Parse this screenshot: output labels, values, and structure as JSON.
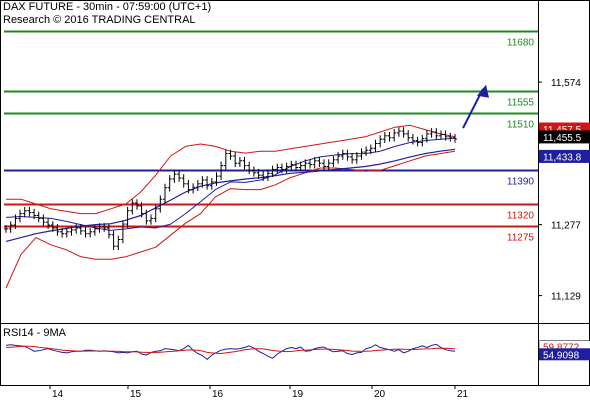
{
  "header": {
    "line1": "DAX FUTURE - 30min - 07:59:00 (UTC+1)",
    "line2": "Research © 2016 TRADING CENTRAL"
  },
  "rsi_label": "RSI14 - 9MA",
  "chart_data": [
    {
      "type": "candlestick",
      "title": "DAX FUTURE - 30min - 07:59:00 (UTC+1)",
      "x_ticks": [
        "14",
        "15",
        "16",
        "19",
        "20",
        "21"
      ],
      "y_ticks": [
        11680,
        11574,
        11510,
        11277,
        11129
      ],
      "y_tick_labels": [
        "11,574",
        "11,277",
        "11,129"
      ],
      "ylim": [
        11072,
        11745
      ],
      "levels": [
        {
          "value": 11680,
          "label": "11680",
          "color": "#1f8a1f"
        },
        {
          "value": 11555,
          "label": "11555",
          "color": "#1f8a1f"
        },
        {
          "value": 11510,
          "label": "11510",
          "color": "#1f8a1f"
        },
        {
          "value": 11390,
          "label": "11390",
          "color": "#1f1f9e"
        },
        {
          "value": 11320,
          "label": "11320",
          "color": "#d11414"
        },
        {
          "value": 11275,
          "label": "11275",
          "color": "#d11414"
        }
      ],
      "price_tags": [
        {
          "value": 11457.5,
          "label": "11,457.5",
          "bg": "#d11414",
          "fg": "#ffffff"
        },
        {
          "value": 11455.5,
          "label": "11,455.5",
          "bg": "#000000",
          "fg": "#ffffff"
        },
        {
          "value": 11433.8,
          "label": "11,433.8",
          "bg": "#1f1f9e",
          "fg": "#ffffff"
        }
      ],
      "close": [
        11268,
        11276,
        11290,
        11300,
        11306,
        11302,
        11296,
        11290,
        11282,
        11276,
        11270,
        11262,
        11258,
        11262,
        11266,
        11270,
        11264,
        11258,
        11262,
        11268,
        11272,
        11270,
        11256,
        11232,
        11246,
        11278,
        11306,
        11322,
        11316,
        11300,
        11285,
        11290,
        11310,
        11330,
        11354,
        11372,
        11382,
        11374,
        11362,
        11350,
        11355,
        11362,
        11370,
        11358,
        11366,
        11378,
        11400,
        11425,
        11420,
        11405,
        11410,
        11400,
        11390,
        11385,
        11380,
        11376,
        11384,
        11392,
        11396,
        11392,
        11398,
        11402,
        11396,
        11400,
        11405,
        11402,
        11410,
        11405,
        11398,
        11405,
        11412,
        11420,
        11425,
        11418,
        11412,
        11420,
        11428,
        11432,
        11436,
        11446,
        11455,
        11462,
        11458,
        11468,
        11472,
        11466,
        11458,
        11452,
        11448,
        11456,
        11466,
        11470,
        11462,
        11465,
        11460,
        11458,
        11455.5
      ],
      "ma_fast": [
        11292,
        11294,
        11292,
        11290,
        11284,
        11277,
        11270,
        11265,
        11268,
        11272,
        11270,
        11278,
        11300,
        11325,
        11350,
        11366,
        11365,
        11370,
        11381,
        11398,
        11410,
        11418,
        11422,
        11425,
        11425,
        11430,
        11440,
        11448,
        11452,
        11455,
        11457
      ],
      "ma_slow": [
        11242,
        11250,
        11258,
        11264,
        11269,
        11274,
        11277,
        11279,
        11286,
        11296,
        11312,
        11328,
        11345,
        11357,
        11364,
        11368,
        11372,
        11375,
        11379,
        11384,
        11386,
        11389,
        11392,
        11395,
        11398,
        11403,
        11410,
        11418,
        11425,
        11430,
        11434
      ],
      "band_upper": [
        11330,
        11330,
        11320,
        11310,
        11305,
        11300,
        11300,
        11310,
        11320,
        11345,
        11380,
        11420,
        11440,
        11445,
        11440,
        11430,
        11426,
        11430,
        11430,
        11435,
        11440,
        11445,
        11450,
        11455,
        11460,
        11470,
        11480,
        11484,
        11475,
        11466,
        11460
      ],
      "band_lower": [
        11145,
        11215,
        11250,
        11235,
        11225,
        11210,
        11205,
        11205,
        11210,
        11220,
        11230,
        11255,
        11280,
        11300,
        11335,
        11352,
        11350,
        11350,
        11360,
        11375,
        11385,
        11395,
        11395,
        11392,
        11388,
        11390,
        11400,
        11410,
        11420,
        11425,
        11430
      ]
    },
    {
      "type": "line",
      "title": "RSI14 - 9MA",
      "ylim": [
        0,
        100
      ],
      "series": [
        {
          "name": "RSI14",
          "color": "#1f1f9e",
          "values": [
            66,
            67,
            66,
            65,
            64,
            60,
            55,
            56,
            58,
            60,
            57,
            55,
            53,
            52,
            54,
            55,
            55,
            57,
            57,
            56,
            55,
            56,
            55,
            54,
            52,
            53,
            52,
            54,
            55,
            50,
            48,
            53,
            55,
            56,
            60,
            59,
            58,
            56,
            60,
            66,
            57,
            51,
            47,
            40,
            48,
            53,
            57,
            59,
            60,
            59,
            60,
            62,
            65,
            61,
            55,
            51,
            46,
            42,
            50,
            55,
            60,
            62,
            60,
            63,
            55,
            56,
            60,
            62,
            63,
            58,
            54,
            55,
            56,
            51,
            49,
            52,
            53,
            60,
            62,
            67,
            62,
            60,
            58,
            55,
            58,
            52,
            55,
            60,
            62,
            65,
            62,
            66,
            68,
            62,
            58,
            56,
            55
          ]
        },
        {
          "name": "9MA",
          "color": "#d11414",
          "values": [
            62,
            62.6,
            63.2,
            63.8,
            64.2,
            64.5,
            63.8,
            62.5,
            61.5,
            60.5,
            59.5,
            58.5,
            57.2,
            56.5,
            56,
            55.5,
            55.4,
            55.4,
            55.5,
            55.6,
            55.4,
            55.4,
            55.2,
            55,
            54.8,
            54.5,
            54.2,
            54,
            53.8,
            53.4,
            53,
            52.8,
            52.9,
            53.1,
            53.8,
            54.6,
            55.2,
            56,
            56.6,
            57.6,
            57.4,
            57,
            55.5,
            53,
            52,
            51.5,
            51,
            52,
            53.4,
            54.5,
            56,
            57.7,
            58.9,
            59.8,
            59.9,
            59.4,
            58.2,
            56.5,
            55.6,
            54.8,
            54.5,
            54.8,
            55.8,
            56.8,
            57.1,
            57.5,
            58.3,
            58.8,
            59.1,
            59.1,
            58.5,
            57.7,
            57.2,
            56.4,
            55.3,
            55.2,
            54.9,
            55,
            55.6,
            56.5,
            57,
            57.5,
            58.3,
            58.9,
            59,
            58.8,
            58.6,
            58.2,
            58.6,
            59.2,
            59.5,
            59.9,
            60.5,
            60.8,
            60.6,
            60.2,
            59.8
          ]
        }
      ],
      "tags": [
        {
          "value": 59.8772,
          "label": "59.8772",
          "bg": "#ffffff",
          "fg": "#d11414"
        },
        {
          "value": 54.9098,
          "label": "54.9098",
          "bg": "#1f1f9e",
          "fg": "#ffffff"
        }
      ]
    }
  ]
}
